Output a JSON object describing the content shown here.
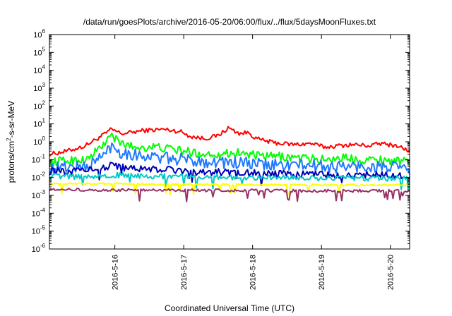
{
  "chart_data": {
    "type": "line",
    "title": "/data/run/goesPlots/archive/2016-05-20/06:00/flux/../flux/5daysMoonFluxes.txt",
    "xlabel": "Coordinated Universal Time (UTC)",
    "ylabel_parts": {
      "before": "protons/cm",
      "sup": "2",
      "after": "-s-sr-MeV"
    },
    "yscale": "log",
    "ylim_exp": [
      -6,
      6
    ],
    "y_tick_exponents": [
      -6,
      -5,
      -4,
      -3,
      -2,
      -1,
      0,
      1,
      2,
      3,
      4,
      5,
      6
    ],
    "y_tick_base": "10",
    "xlim_days": [
      15.05,
      20.28
    ],
    "x_ticks": [
      {
        "day": 16,
        "label": "2016-5-16"
      },
      {
        "day": 17,
        "label": "2016-5-17"
      },
      {
        "day": 18,
        "label": "2016-5-18"
      },
      {
        "day": 19,
        "label": "2016-5-19"
      },
      {
        "day": 20,
        "label": "2016-5-20"
      }
    ],
    "grid": false,
    "legend": "none",
    "series": [
      {
        "color": "#ff0000",
        "noise": 0.12,
        "points": [
          [
            15.05,
            0.2
          ],
          [
            15.3,
            0.3
          ],
          [
            15.55,
            0.55
          ],
          [
            15.8,
            2.0
          ],
          [
            15.95,
            5.0
          ],
          [
            16.1,
            2.8
          ],
          [
            16.4,
            4.2
          ],
          [
            16.7,
            5.0
          ],
          [
            16.95,
            3.8
          ],
          [
            17.1,
            2.0
          ],
          [
            17.3,
            1.5
          ],
          [
            17.5,
            2.2
          ],
          [
            17.65,
            6.0
          ],
          [
            17.8,
            3.0
          ],
          [
            17.95,
            3.2
          ],
          [
            18.05,
            1.5
          ],
          [
            18.3,
            0.9
          ],
          [
            18.6,
            0.7
          ],
          [
            18.85,
            0.8
          ],
          [
            19.05,
            0.5
          ],
          [
            19.25,
            0.6
          ],
          [
            19.45,
            0.7
          ],
          [
            19.7,
            0.6
          ],
          [
            19.85,
            0.8
          ],
          [
            20.1,
            0.6
          ],
          [
            20.28,
            0.3
          ]
        ]
      },
      {
        "color": "#00ff00",
        "noise": 0.25,
        "points": [
          [
            15.05,
            0.07
          ],
          [
            15.3,
            0.09
          ],
          [
            15.6,
            0.1
          ],
          [
            15.85,
            0.8
          ],
          [
            15.95,
            2.5
          ],
          [
            16.05,
            0.9
          ],
          [
            16.3,
            0.5
          ],
          [
            16.6,
            0.5
          ],
          [
            16.9,
            0.35
          ],
          [
            17.2,
            0.22
          ],
          [
            17.5,
            0.2
          ],
          [
            17.8,
            0.25
          ],
          [
            18.1,
            0.15
          ],
          [
            18.4,
            0.15
          ],
          [
            18.7,
            0.12
          ],
          [
            19.0,
            0.1
          ],
          [
            19.3,
            0.13
          ],
          [
            19.6,
            0.1
          ],
          [
            19.9,
            0.1
          ],
          [
            20.28,
            0.07
          ]
        ]
      },
      {
        "color": "#1e78ff",
        "noise": 0.35,
        "points": [
          [
            15.05,
            0.03
          ],
          [
            15.3,
            0.04
          ],
          [
            15.6,
            0.04
          ],
          [
            15.85,
            0.2
          ],
          [
            15.95,
            0.6
          ],
          [
            16.1,
            0.25
          ],
          [
            16.4,
            0.17
          ],
          [
            16.7,
            0.12
          ],
          [
            17.0,
            0.1
          ],
          [
            17.3,
            0.08
          ],
          [
            17.6,
            0.07
          ],
          [
            17.9,
            0.06
          ],
          [
            18.2,
            0.05
          ],
          [
            18.5,
            0.05
          ],
          [
            18.8,
            0.05
          ],
          [
            19.1,
            0.04
          ],
          [
            19.5,
            0.04
          ],
          [
            19.9,
            0.04
          ],
          [
            20.28,
            0.03
          ]
        ]
      },
      {
        "color": "#0000b4",
        "noise": 0.2,
        "points": [
          [
            15.05,
            0.022
          ],
          [
            15.4,
            0.022
          ],
          [
            15.8,
            0.03
          ],
          [
            15.95,
            0.05
          ],
          [
            16.2,
            0.03
          ],
          [
            16.5,
            0.03
          ],
          [
            16.9,
            0.025
          ],
          [
            17.3,
            0.02
          ],
          [
            17.7,
            0.02
          ],
          [
            18.1,
            0.017
          ],
          [
            18.5,
            0.015
          ],
          [
            18.9,
            0.015
          ],
          [
            19.3,
            0.014
          ],
          [
            19.7,
            0.014
          ],
          [
            20.28,
            0.012
          ]
        ]
      },
      {
        "color": "#00c8c8",
        "noise": 0.15,
        "points": [
          [
            15.05,
            0.012
          ],
          [
            15.5,
            0.011
          ],
          [
            15.95,
            0.014
          ],
          [
            16.5,
            0.012
          ],
          [
            17.0,
            0.011
          ],
          [
            17.5,
            0.011
          ],
          [
            18.0,
            0.01
          ],
          [
            18.5,
            0.01
          ],
          [
            19.0,
            0.009
          ],
          [
            19.5,
            0.009
          ],
          [
            20.28,
            0.009
          ]
        ]
      },
      {
        "color": "#ffff00",
        "noise": 0.05,
        "points": [
          [
            15.05,
            0.0045
          ],
          [
            16.0,
            0.0045
          ],
          [
            17.0,
            0.004
          ],
          [
            18.0,
            0.004
          ],
          [
            19.0,
            0.0038
          ],
          [
            20.28,
            0.0038
          ]
        ]
      },
      {
        "color": "#963264",
        "noise": 0.08,
        "points": [
          [
            15.05,
            0.0021
          ],
          [
            16.0,
            0.002
          ],
          [
            17.0,
            0.0019
          ],
          [
            18.0,
            0.0019
          ],
          [
            18.5,
            0.0018
          ],
          [
            19.0,
            0.0018
          ],
          [
            20.28,
            0.0018
          ]
        ]
      }
    ]
  }
}
